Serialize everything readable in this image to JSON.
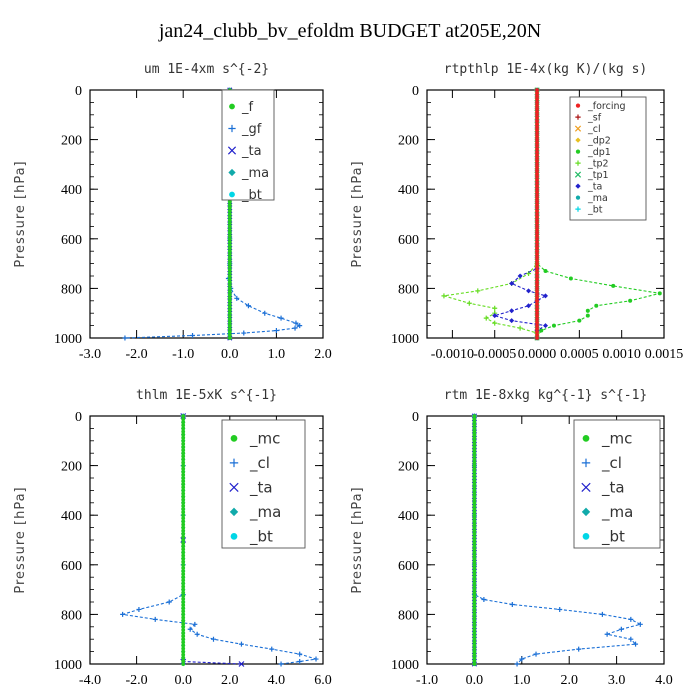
{
  "title": "jan24_clubb_bv_efoldm  BUDGET at205E,20N",
  "colors": {
    "green": "#22cc22",
    "blue": "#1a6fd6",
    "navy": "#2222cc",
    "teal": "#11aaaa",
    "cyan": "#00d6e6",
    "red": "#ee2222",
    "darkred": "#aa1111",
    "orange": "#f0a020",
    "yellow": "#e8c020",
    "lime": "#66dd22",
    "seagreen": "#22bb66",
    "lightblue": "#3399ff"
  },
  "chart_data": [
    {
      "type": "line",
      "title": "um  1E-4xm s^{-2}",
      "ylabel": "Pressure [hPa]",
      "ylim": [
        1000,
        0
      ],
      "xlim": [
        -3.0,
        2.0
      ],
      "xticks": [
        "-3.0",
        "-2.0",
        "-1.0",
        "0.0",
        "1.0",
        "2.0"
      ],
      "xtick_values": [
        -3,
        -2,
        -1,
        0,
        1,
        2
      ],
      "yticks": [
        "0",
        "200",
        "400",
        "600",
        "800",
        "1000"
      ],
      "legend": "top-right",
      "series": [
        {
          "name": "_f",
          "color": "green",
          "y": [
            0,
            100,
            200,
            300,
            400,
            500,
            600,
            700,
            800,
            900,
            1000
          ],
          "x": [
            0,
            0,
            0,
            0,
            0,
            0,
            0,
            0,
            0,
            0,
            0
          ]
        },
        {
          "name": "_gf",
          "color": "blue",
          "y": [
            0,
            200,
            400,
            600,
            700,
            760,
            800,
            840,
            870,
            900,
            920,
            940,
            950,
            960,
            970,
            980,
            990,
            1000
          ],
          "x": [
            0,
            0,
            0,
            0,
            0,
            -0.03,
            0.02,
            0.15,
            0.4,
            0.75,
            1.1,
            1.42,
            1.5,
            1.4,
            1.0,
            0.3,
            -0.8,
            -2.25
          ]
        },
        {
          "name": "_ta",
          "color": "navy",
          "y": [
            0,
            500,
            1000
          ],
          "x": [
            0,
            0,
            0
          ]
        },
        {
          "name": "_ma",
          "color": "teal",
          "y": [
            0,
            500,
            1000
          ],
          "x": [
            0,
            0,
            0
          ]
        },
        {
          "name": "_bt",
          "color": "cyan",
          "y": [
            0,
            500,
            1000
          ],
          "x": [
            0,
            0,
            0
          ]
        }
      ]
    },
    {
      "type": "line",
      "title": "rtpthlp  1E-4x(kg K)/(kg s)",
      "ylabel": "Pressure [hPa]",
      "ylim": [
        1000,
        0
      ],
      "xlim": [
        -0.0013,
        0.0015
      ],
      "xticks": [
        "-0.0010",
        "-0.0005",
        "0.0000",
        "0.0005",
        "0.0010",
        "0.0015"
      ],
      "xtick_values": [
        -0.001,
        -0.0005,
        0,
        0.0005,
        0.001,
        0.0015
      ],
      "yticks": [
        "0",
        "200",
        "400",
        "600",
        "800",
        "1000"
      ],
      "legend": "top-right",
      "series": [
        {
          "name": "_forcing",
          "color": "red",
          "y": [
            0,
            100,
            200,
            300,
            400,
            500,
            600,
            700,
            800,
            900,
            1000
          ],
          "x": [
            0,
            0,
            0,
            0,
            0,
            0,
            0,
            0,
            0,
            0,
            0
          ]
        },
        {
          "name": "_sf",
          "color": "darkred",
          "y": [
            0,
            500,
            1000
          ],
          "x": [
            0,
            0,
            0
          ]
        },
        {
          "name": "_cl",
          "color": "orange",
          "y": [
            0,
            500,
            1000
          ],
          "x": [
            0,
            0,
            0
          ]
        },
        {
          "name": "_dp2",
          "color": "yellow",
          "y": [
            0,
            500,
            1000
          ],
          "x": [
            0,
            0,
            0
          ]
        },
        {
          "name": "_dp1",
          "color": "green",
          "y": [
            0,
            700,
            730,
            760,
            790,
            820,
            850,
            870,
            890,
            910,
            930,
            950,
            970,
            1000
          ],
          "x": [
            0,
            0,
            0.0001,
            0.0004,
            0.0009,
            0.00145,
            0.0011,
            0.0007,
            0.0006,
            0.0006,
            0.0005,
            0.0002,
            5e-05,
            0
          ]
        },
        {
          "name": "_tp2",
          "color": "lime",
          "y": [
            0,
            700,
            740,
            780,
            810,
            830,
            860,
            880,
            900,
            920,
            940,
            960,
            980,
            1000
          ],
          "x": [
            0,
            0,
            -0.0001,
            -0.0003,
            -0.0007,
            -0.0011,
            -0.0008,
            -0.0005,
            -0.0005,
            -0.0006,
            -0.0005,
            -0.0002,
            0,
            0
          ]
        },
        {
          "name": "_tp1",
          "color": "seagreen",
          "y": [
            0,
            500,
            1000
          ],
          "x": [
            0,
            0,
            0
          ]
        },
        {
          "name": "_ta",
          "color": "navy",
          "y": [
            0,
            720,
            750,
            780,
            810,
            830,
            850,
            870,
            890,
            910,
            930,
            950,
            970,
            1000
          ],
          "x": [
            0,
            0,
            -0.0002,
            -0.0003,
            -0.0001,
            0.0001,
            0,
            -0.0001,
            -0.0003,
            -0.0005,
            -0.0003,
            0.0001,
            0,
            0
          ]
        },
        {
          "name": "_ma",
          "color": "teal",
          "y": [
            0,
            500,
            1000
          ],
          "x": [
            0,
            0,
            0
          ]
        },
        {
          "name": "_bt",
          "color": "cyan",
          "y": [
            0,
            500,
            1000
          ],
          "x": [
            0,
            0,
            0
          ]
        }
      ]
    },
    {
      "type": "line",
      "title": "thlm  1E-5xK s^{-1}",
      "ylabel": "Pressure [hPa]",
      "ylim": [
        1000,
        0
      ],
      "xlim": [
        -4.0,
        6.0
      ],
      "xticks": [
        "-4.0",
        "-2.0",
        "0.0",
        "2.0",
        "4.0",
        "6.0"
      ],
      "xtick_values": [
        -4,
        -2,
        0,
        2,
        4,
        6
      ],
      "yticks": [
        "0",
        "200",
        "400",
        "600",
        "800",
        "1000"
      ],
      "legend": "top-right",
      "series": [
        {
          "name": "_mc",
          "color": "green",
          "y": [
            0,
            100,
            200,
            300,
            400,
            500,
            600,
            700,
            800,
            900,
            1000
          ],
          "x": [
            0,
            0,
            0,
            0,
            0,
            0,
            0,
            0,
            0,
            0,
            0
          ]
        },
        {
          "name": "_cl",
          "color": "blue",
          "y": [
            0,
            200,
            400,
            600,
            720,
            750,
            780,
            800,
            820,
            840,
            860,
            880,
            900,
            920,
            940,
            960,
            980,
            990,
            1000
          ],
          "x": [
            0,
            0,
            0,
            0,
            0,
            -0.6,
            -1.9,
            -2.6,
            -1.2,
            0.5,
            0.3,
            0.6,
            1.3,
            2.5,
            3.8,
            5.0,
            5.7,
            5.0,
            4.2
          ]
        },
        {
          "name": "_ta",
          "color": "navy",
          "y": [
            0,
            500,
            990,
            1000
          ],
          "x": [
            0,
            0,
            0,
            2.5
          ]
        },
        {
          "name": "_ma",
          "color": "teal",
          "y": [
            0,
            500,
            1000
          ],
          "x": [
            0,
            0,
            0
          ]
        },
        {
          "name": "_bt",
          "color": "cyan",
          "y": [
            0,
            500,
            1000
          ],
          "x": [
            0,
            0,
            0
          ]
        }
      ]
    },
    {
      "type": "line",
      "title": "rtm  1E-8xkg kg^{-1} s^{-1}",
      "ylabel": "Pressure [hPa]",
      "ylim": [
        1000,
        0
      ],
      "xlim": [
        -1.0,
        4.0
      ],
      "xticks": [
        "-1.0",
        "0.0",
        "1.0",
        "2.0",
        "3.0",
        "4.0"
      ],
      "xtick_values": [
        -1,
        0,
        1,
        2,
        3,
        4
      ],
      "yticks": [
        "0",
        "200",
        "400",
        "600",
        "800",
        "1000"
      ],
      "legend": "top-right",
      "series": [
        {
          "name": "_mc",
          "color": "green",
          "y": [
            0,
            100,
            200,
            300,
            400,
            500,
            600,
            700,
            800,
            900,
            1000
          ],
          "x": [
            0,
            0,
            0,
            0,
            0,
            0,
            0,
            0,
            0,
            0,
            0
          ]
        },
        {
          "name": "_cl",
          "color": "blue",
          "y": [
            0,
            200,
            400,
            600,
            720,
            740,
            760,
            780,
            800,
            820,
            840,
            860,
            880,
            900,
            920,
            940,
            960,
            980,
            1000
          ],
          "x": [
            0,
            0,
            0,
            0,
            0,
            0.2,
            0.8,
            1.8,
            2.7,
            3.3,
            3.5,
            3.1,
            2.8,
            3.3,
            3.4,
            2.2,
            1.3,
            1.0,
            0.9
          ]
        },
        {
          "name": "_ta",
          "color": "navy",
          "y": [
            0,
            500,
            1000
          ],
          "x": [
            0,
            0,
            0
          ]
        },
        {
          "name": "_ma",
          "color": "teal",
          "y": [
            0,
            500,
            1000
          ],
          "x": [
            0,
            0,
            0
          ]
        },
        {
          "name": "_bt",
          "color": "cyan",
          "y": [
            0,
            500,
            1000
          ],
          "x": [
            0,
            0,
            0
          ]
        }
      ]
    }
  ]
}
